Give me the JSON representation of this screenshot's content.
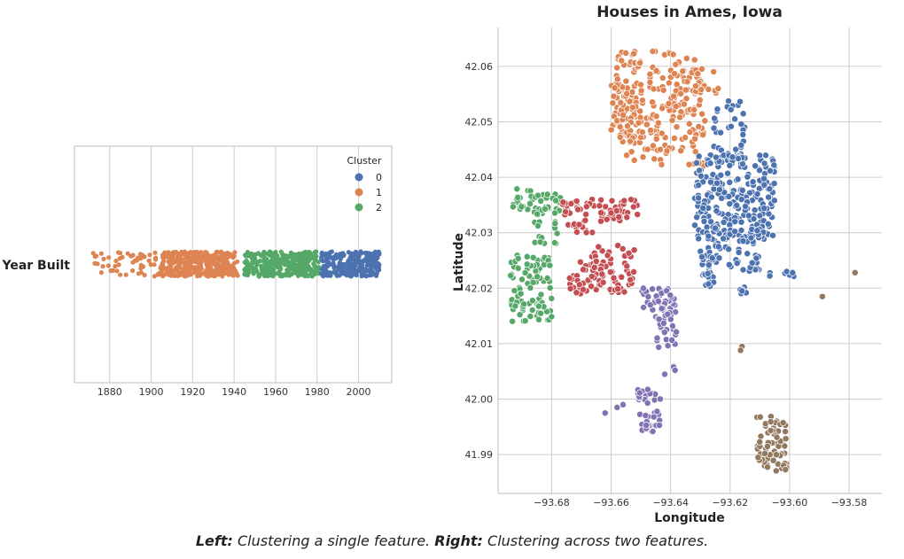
{
  "colors": {
    "cluster_0": "#4c72b0",
    "cluster_1": "#dd8452",
    "cluster_2": "#55a868",
    "cluster_3": "#c44e52",
    "cluster_4": "#8172b3",
    "cluster_5": "#937860",
    "grid": "#cccccc",
    "spine": "#bbbbbb"
  },
  "caption": {
    "left_label": "Left:",
    "left_text": "Clustering a single feature.",
    "right_label": "Right:",
    "right_text": "Clustering across two features."
  },
  "chart_data": [
    {
      "type": "scatter",
      "subtype": "strip",
      "title": "",
      "xlabel": "",
      "ylabel": "Year Built",
      "xlim": [
        1863,
        2016
      ],
      "xticks": [
        1880,
        1900,
        1920,
        1940,
        1960,
        1980,
        2000
      ],
      "legend": {
        "title": "Cluster",
        "placement": "top-right",
        "entries": [
          "0",
          "1",
          "2"
        ]
      },
      "series": [
        {
          "name": "1",
          "cluster": 1,
          "ranges": [
            [
              1872,
              1942
            ]
          ],
          "sparse_below": 1905
        },
        {
          "name": "2",
          "cluster": 2,
          "ranges": [
            [
              1945,
              1981
            ]
          ]
        },
        {
          "name": "0",
          "cluster": 0,
          "ranges": [
            [
              1982,
              2010
            ]
          ]
        }
      ]
    },
    {
      "type": "scatter",
      "title": "Houses in Ames, Iowa",
      "xlabel": "Longitude",
      "ylabel": "Latitude",
      "xlim": [
        -93.698,
        -93.569
      ],
      "ylim": [
        41.983,
        42.067
      ],
      "xticks": [
        -93.68,
        -93.66,
        -93.64,
        -93.62,
        -93.6,
        -93.58
      ],
      "yticks": [
        41.99,
        42.0,
        42.01,
        42.02,
        42.03,
        42.04,
        42.05,
        42.06
      ],
      "xtick_labels": [
        "−93.68",
        "−93.66",
        "−93.64",
        "−93.62",
        "−93.60",
        "−93.58"
      ],
      "ytick_labels": [
        "41.99",
        "42.00",
        "42.01",
        "42.02",
        "42.03",
        "42.04",
        "42.05",
        "42.06"
      ],
      "grid": true,
      "clusters": [
        {
          "cluster": 1,
          "regions": [
            {
              "lon": [
                -93.659,
                -93.65
              ],
              "lat": [
                42.046,
                42.063
              ],
              "n": 70
            },
            {
              "lon": [
                -93.66,
                -93.649
              ],
              "lat": [
                42.046,
                42.057
              ],
              "n": 50
            },
            {
              "lon": [
                -93.655,
                -93.644
              ],
              "lat": [
                42.043,
                42.051
              ],
              "n": 40
            },
            {
              "lon": [
                -93.647,
                -93.63
              ],
              "lat": [
                42.051,
                42.063
              ],
              "n": 80
            },
            {
              "lon": [
                -93.645,
                -93.628
              ],
              "lat": [
                42.042,
                42.053
              ],
              "n": 50
            },
            {
              "lon": [
                -93.633,
                -93.624
              ],
              "lat": [
                42.055,
                42.06
              ],
              "n": 20
            }
          ]
        },
        {
          "cluster": 0,
          "regions": [
            {
              "lon": [
                -93.627,
                -93.615
              ],
              "lat": [
                42.042,
                42.054
              ],
              "n": 40
            },
            {
              "lon": [
                -93.632,
                -93.605
              ],
              "lat": [
                42.028,
                42.044
              ],
              "n": 240
            },
            {
              "lon": [
                -93.628,
                -93.61
              ],
              "lat": [
                42.023,
                42.031
              ],
              "n": 50
            },
            {
              "lon": [
                -93.63,
                -93.625
              ],
              "lat": [
                42.02,
                42.027
              ],
              "n": 25
            },
            {
              "lon": [
                -93.618,
                -93.614
              ],
              "lat": [
                42.019,
                42.022
              ],
              "n": 6
            },
            {
              "lon": [
                -93.609,
                -93.598
              ],
              "lat": [
                42.022,
                42.023
              ],
              "n": 6
            }
          ]
        },
        {
          "cluster": 2,
          "regions": [
            {
              "lon": [
                -93.693,
                -93.681
              ],
              "lat": [
                42.034,
                42.038
              ],
              "n": 30
            },
            {
              "lon": [
                -93.686,
                -93.677
              ],
              "lat": [
                42.028,
                42.037
              ],
              "n": 40
            },
            {
              "lon": [
                -93.694,
                -93.68
              ],
              "lat": [
                42.014,
                42.026
              ],
              "n": 90
            }
          ]
        },
        {
          "cluster": 3,
          "regions": [
            {
              "lon": [
                -93.677,
                -93.665
              ],
              "lat": [
                42.03,
                42.036
              ],
              "n": 40
            },
            {
              "lon": [
                -93.664,
                -93.651
              ],
              "lat": [
                42.032,
                42.036
              ],
              "n": 35
            },
            {
              "lon": [
                -93.674,
                -93.663
              ],
              "lat": [
                42.019,
                42.025
              ],
              "n": 30
            },
            {
              "lon": [
                -93.667,
                -93.652
              ],
              "lat": [
                42.019,
                42.028
              ],
              "n": 60
            }
          ]
        },
        {
          "cluster": 4,
          "regions": [
            {
              "lon": [
                -93.65,
                -93.638
              ],
              "lat": [
                42.016,
                42.02
              ],
              "n": 40
            },
            {
              "lon": [
                -93.645,
                -93.638
              ],
              "lat": [
                42.009,
                42.016
              ],
              "n": 30
            },
            {
              "lon": [
                -93.651,
                -93.643
              ],
              "lat": [
                41.995,
                42.002
              ],
              "n": 30
            },
            {
              "lon": [
                -93.65,
                -93.645
              ],
              "lat": [
                41.994,
                41.997
              ],
              "n": 10
            }
          ]
        },
        {
          "cluster": 5,
          "regions": [
            {
              "lon": [
                -93.611,
                -93.601
              ],
              "lat": [
                41.987,
                41.997
              ],
              "n": 65
            }
          ]
        }
      ],
      "outliers": [
        {
          "cluster": 0,
          "lon": -93.601,
          "lat": 42.023
        },
        {
          "cluster": 0,
          "lon": -93.599,
          "lat": 42.0228
        },
        {
          "cluster": 0,
          "lon": -93.616,
          "lat": 42.0195
        },
        {
          "cluster": 5,
          "lon": -93.578,
          "lat": 42.0228
        },
        {
          "cluster": 5,
          "lon": -93.589,
          "lat": 42.0185
        },
        {
          "cluster": 5,
          "lon": -93.616,
          "lat": 42.0095
        },
        {
          "cluster": 5,
          "lon": -93.6165,
          "lat": 42.0088
        },
        {
          "cluster": 4,
          "lon": -93.642,
          "lat": 42.0045
        },
        {
          "cluster": 4,
          "lon": -93.639,
          "lat": 42.0058
        },
        {
          "cluster": 4,
          "lon": -93.6385,
          "lat": 42.0052
        },
        {
          "cluster": 4,
          "lon": -93.658,
          "lat": 41.9985
        },
        {
          "cluster": 4,
          "lon": -93.662,
          "lat": 41.9975
        },
        {
          "cluster": 4,
          "lon": -93.656,
          "lat": 41.999
        }
      ]
    }
  ]
}
